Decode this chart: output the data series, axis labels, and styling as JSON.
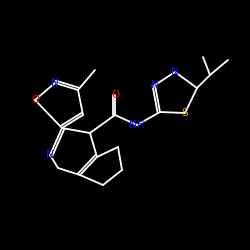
{
  "background_color": "#000000",
  "bond_color": "#ffffff",
  "atom_colors": {
    "N": "#1010ff",
    "O": "#ff0000",
    "S": "#ddaa00",
    "C": "#ffffff",
    "H": "#ffffff"
  },
  "figsize": [
    2.5,
    2.5
  ],
  "dpi": 100
}
